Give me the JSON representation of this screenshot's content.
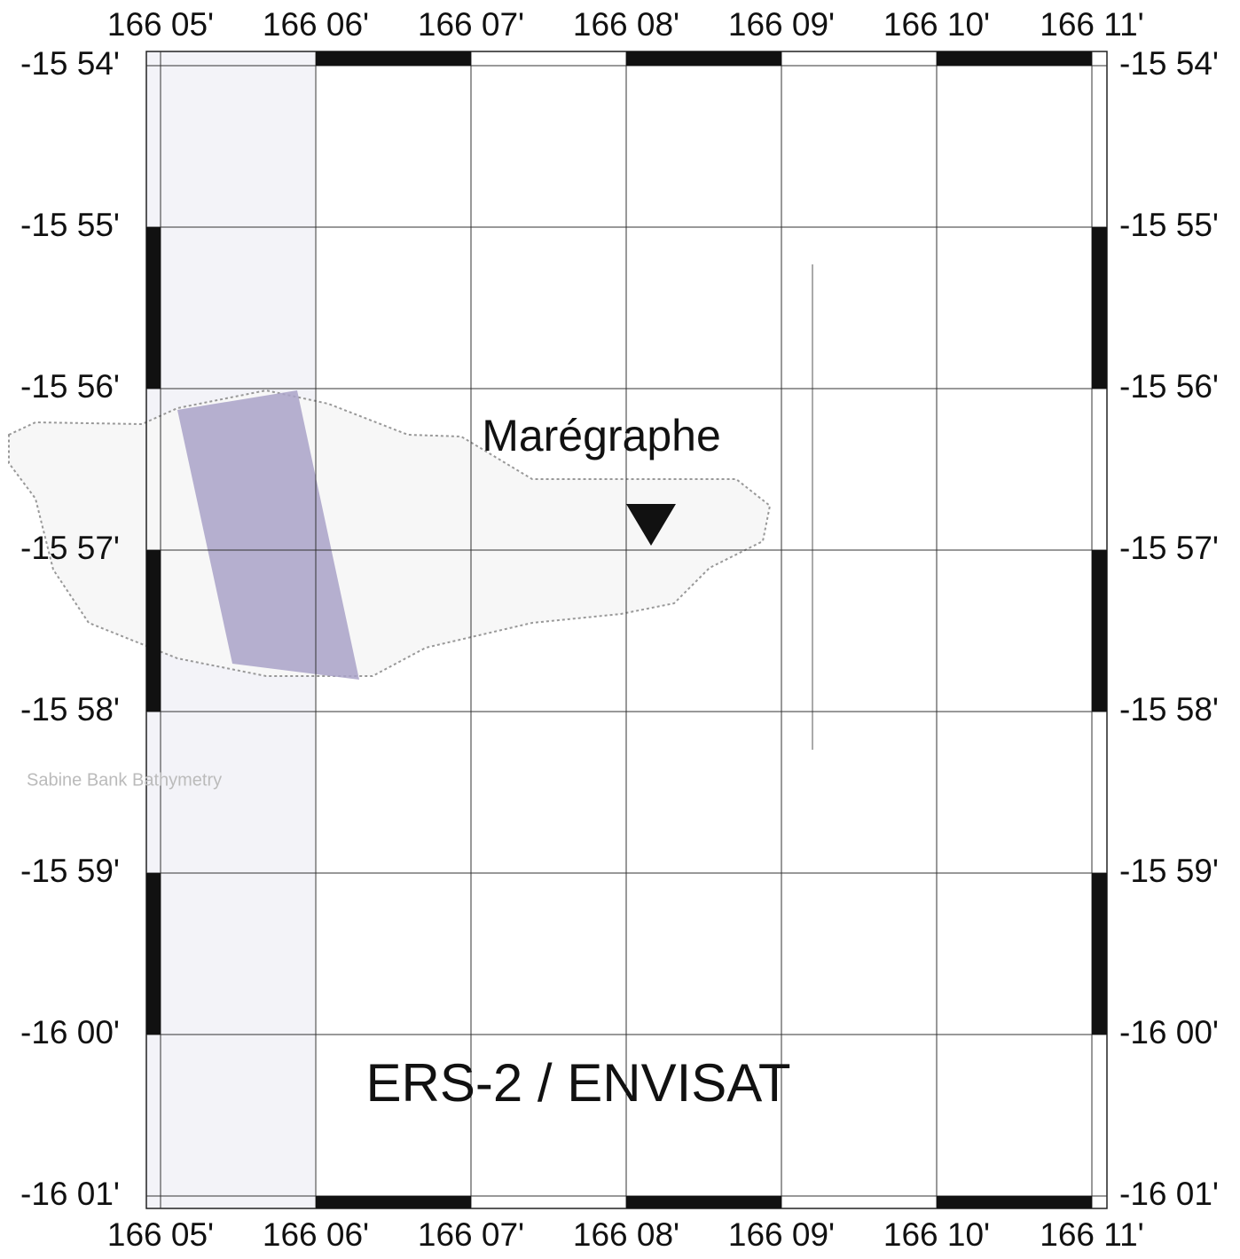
{
  "map": {
    "x_labels": [
      "166 05'",
      "166 06'",
      "166 07'",
      "166 08'",
      "166 09'",
      "166 10'",
      "166 11'"
    ],
    "y_labels": [
      "-15 54'",
      "-15 55'",
      "-15 56'",
      "-15 57'",
      "-15 58'",
      "-15 59'",
      "-16 00'",
      "-16 01'"
    ],
    "station": "Marégraphe",
    "mission": "ERS-2 / ENVISAT",
    "inset_title": "Sabine Bank Bathymetry"
  }
}
